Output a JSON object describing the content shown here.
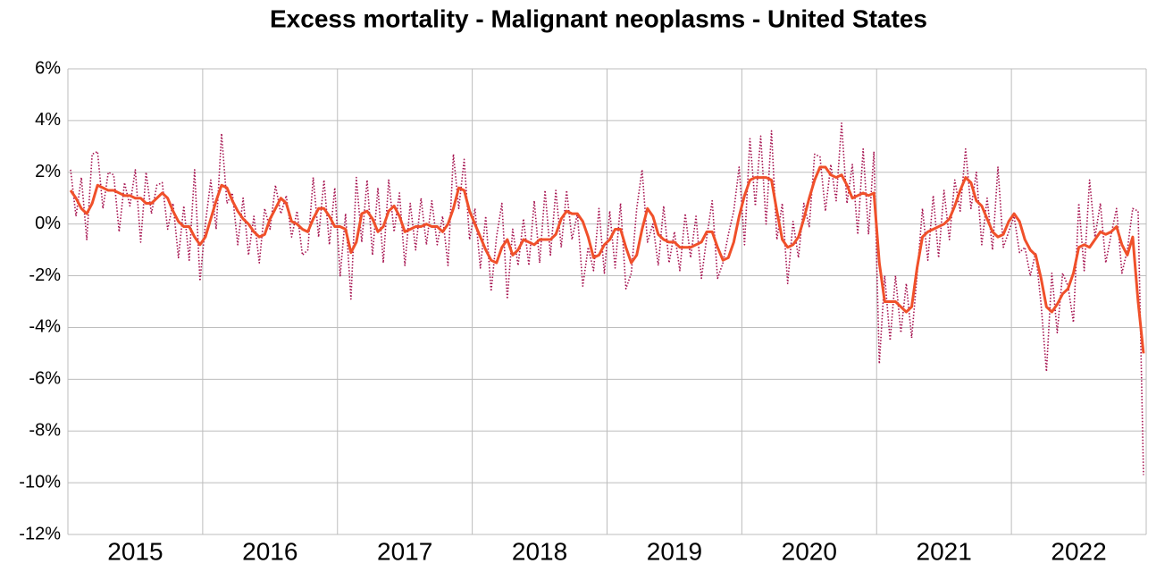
{
  "chart_data": {
    "type": "line",
    "title": "Excess mortality - Malignant neoplasms - United States",
    "xlim": [
      2015,
      2023
    ],
    "xticks": [
      {
        "value": 2015.5,
        "label": "2015"
      },
      {
        "value": 2016.5,
        "label": "2016"
      },
      {
        "value": 2017.5,
        "label": "2017"
      },
      {
        "value": 2018.5,
        "label": "2018"
      },
      {
        "value": 2019.5,
        "label": "2019"
      },
      {
        "value": 2020.5,
        "label": "2020"
      },
      {
        "value": 2021.5,
        "label": "2021"
      },
      {
        "value": 2022.5,
        "label": "2022"
      }
    ],
    "xgrid": [
      2016,
      2017,
      2018,
      2019,
      2020,
      2021,
      2022
    ],
    "ylim": [
      -12,
      6
    ],
    "yticks": [
      {
        "value": -12,
        "label": "-12%"
      },
      {
        "value": -10,
        "label": "-10%"
      },
      {
        "value": -8,
        "label": "-8%"
      },
      {
        "value": -6,
        "label": "-6%"
      },
      {
        "value": -4,
        "label": "-4%"
      },
      {
        "value": -2,
        "label": "-2%"
      },
      {
        "value": 0,
        "label": "0%"
      },
      {
        "value": 2,
        "label": "2%"
      },
      {
        "value": 4,
        "label": "4%"
      },
      {
        "value": 6,
        "label": "6%"
      }
    ],
    "grid": true,
    "x": [
      2015.02,
      2015.06,
      2015.1,
      2015.14,
      2015.18,
      2015.22,
      2015.26,
      2015.3,
      2015.34,
      2015.38,
      2015.42,
      2015.46,
      2015.5,
      2015.54,
      2015.58,
      2015.62,
      2015.66,
      2015.7,
      2015.74,
      2015.78,
      2015.82,
      2015.86,
      2015.9,
      2015.94,
      2015.98,
      2016.02,
      2016.06,
      2016.1,
      2016.14,
      2016.18,
      2016.22,
      2016.26,
      2016.3,
      2016.34,
      2016.38,
      2016.42,
      2016.46,
      2016.5,
      2016.54,
      2016.58,
      2016.62,
      2016.66,
      2016.7,
      2016.74,
      2016.78,
      2016.82,
      2016.86,
      2016.9,
      2016.94,
      2016.98,
      2017.02,
      2017.06,
      2017.1,
      2017.14,
      2017.18,
      2017.22,
      2017.26,
      2017.3,
      2017.34,
      2017.38,
      2017.42,
      2017.46,
      2017.5,
      2017.54,
      2017.58,
      2017.62,
      2017.66,
      2017.7,
      2017.74,
      2017.78,
      2017.82,
      2017.86,
      2017.9,
      2017.94,
      2017.98,
      2018.02,
      2018.06,
      2018.1,
      2018.14,
      2018.18,
      2018.22,
      2018.26,
      2018.3,
      2018.34,
      2018.38,
      2018.42,
      2018.46,
      2018.5,
      2018.54,
      2018.58,
      2018.62,
      2018.66,
      2018.7,
      2018.74,
      2018.78,
      2018.82,
      2018.86,
      2018.9,
      2018.94,
      2018.98,
      2019.02,
      2019.06,
      2019.1,
      2019.14,
      2019.18,
      2019.22,
      2019.26,
      2019.3,
      2019.34,
      2019.38,
      2019.42,
      2019.46,
      2019.5,
      2019.54,
      2019.58,
      2019.62,
      2019.66,
      2019.7,
      2019.74,
      2019.78,
      2019.82,
      2019.86,
      2019.9,
      2019.94,
      2019.98,
      2020.02,
      2020.06,
      2020.1,
      2020.14,
      2020.18,
      2020.22,
      2020.26,
      2020.3,
      2020.34,
      2020.38,
      2020.42,
      2020.46,
      2020.5,
      2020.54,
      2020.58,
      2020.62,
      2020.66,
      2020.7,
      2020.74,
      2020.78,
      2020.82,
      2020.86,
      2020.9,
      2020.94,
      2020.98,
      2021.02,
      2021.06,
      2021.1,
      2021.14,
      2021.18,
      2021.22,
      2021.26,
      2021.3,
      2021.34,
      2021.38,
      2021.42,
      2021.46,
      2021.5,
      2021.54,
      2021.58,
      2021.62,
      2021.66,
      2021.7,
      2021.74,
      2021.78,
      2021.82,
      2021.86,
      2021.9,
      2021.94,
      2021.98,
      2022.02,
      2022.06,
      2022.1,
      2022.14,
      2022.18,
      2022.22,
      2022.26,
      2022.3,
      2022.34,
      2022.38,
      2022.42,
      2022.46,
      2022.5,
      2022.54,
      2022.58,
      2022.62,
      2022.66,
      2022.7,
      2022.74,
      2022.78,
      2022.82,
      2022.86,
      2022.9,
      2022.94,
      2022.98
    ],
    "series": [
      {
        "color": "#a5124f",
        "style": "dotted",
        "values": [
          2.1,
          0.3,
          1.8,
          -0.6,
          2.7,
          2.8,
          0.6,
          2.0,
          1.9,
          -0.3,
          1.6,
          0.7,
          2.1,
          -0.7,
          2.0,
          0.4,
          1.5,
          1.6,
          -0.2,
          0.8,
          -1.3,
          0.7,
          -1.4,
          2.1,
          -2.2,
          0.0,
          1.7,
          -0.2,
          3.5,
          0.8,
          1.2,
          -0.8,
          1.0,
          -1.2,
          0.3,
          -1.5,
          0.6,
          -0.2,
          1.5,
          0.4,
          1.1,
          -0.5,
          0.5,
          -1.2,
          -1.0,
          1.8,
          -0.5,
          1.7,
          -0.8,
          1.4,
          -2.0,
          0.4,
          -2.9,
          1.8,
          -0.7,
          1.7,
          -1.2,
          1.4,
          -1.5,
          1.7,
          -0.3,
          1.2,
          -1.6,
          0.8,
          -1.0,
          1.0,
          -0.8,
          0.9,
          -0.8,
          0.3,
          -1.6,
          2.7,
          0.6,
          2.5,
          -0.6,
          0.6,
          -1.7,
          0.3,
          -2.6,
          -0.5,
          0.8,
          -2.9,
          -0.2,
          -1.6,
          0.2,
          -1.6,
          0.9,
          -1.5,
          1.3,
          -1.2,
          1.3,
          -0.9,
          1.3,
          -0.6,
          0.4,
          -2.4,
          -0.9,
          -1.8,
          0.6,
          -1.9,
          0.5,
          -1.7,
          0.8,
          -2.5,
          -1.9,
          0.6,
          2.1,
          -0.7,
          0.0,
          -1.6,
          0.7,
          -1.5,
          -0.3,
          -1.8,
          0.4,
          -1.3,
          0.3,
          -2.1,
          -0.5,
          0.9,
          -2.1,
          -1.5,
          -0.4,
          0.5,
          2.2,
          -0.8,
          3.3,
          0.7,
          3.4,
          0.0,
          3.6,
          -0.6,
          0.8,
          -2.3,
          0.1,
          -1.3,
          0.8,
          -0.1,
          2.7,
          2.6,
          0.5,
          2.3,
          0.9,
          3.9,
          0.8,
          2.3,
          -0.4,
          2.9,
          -0.4,
          2.8,
          -5.4,
          -2.0,
          -4.5,
          -2.0,
          -4.2,
          -2.3,
          -4.4,
          -2.0,
          0.6,
          -1.4,
          1.1,
          -1.3,
          1.3,
          -0.6,
          1.7,
          0.5,
          2.9,
          0.6,
          2.0,
          -0.8,
          1.0,
          -1.0,
          2.2,
          -0.9,
          -0.3,
          0.3,
          -1.1,
          -0.9,
          -2.0,
          -1.1,
          -3.1,
          -5.7,
          -1.9,
          -4.2,
          -1.9,
          -2.4,
          -3.8,
          0.8,
          -1.8,
          1.7,
          -0.5,
          0.8,
          -1.5,
          -0.4,
          0.6,
          -1.9,
          -1.0,
          0.6,
          0.5,
          -9.7
        ]
      },
      {
        "color": "#f0502a",
        "style": "solid",
        "values": [
          1.3,
          1.0,
          0.6,
          0.4,
          0.8,
          1.5,
          1.4,
          1.3,
          1.3,
          1.2,
          1.1,
          1.1,
          1.0,
          1.0,
          0.8,
          0.8,
          1.0,
          1.2,
          1.0,
          0.5,
          0.1,
          -0.1,
          -0.1,
          -0.5,
          -0.8,
          -0.5,
          0.2,
          0.9,
          1.5,
          1.4,
          0.9,
          0.5,
          0.2,
          0.0,
          -0.3,
          -0.5,
          -0.4,
          0.2,
          0.6,
          1.0,
          0.8,
          0.1,
          0.0,
          -0.2,
          -0.3,
          0.2,
          0.6,
          0.6,
          0.3,
          -0.1,
          -0.1,
          -0.2,
          -1.1,
          -0.7,
          0.4,
          0.5,
          0.2,
          -0.3,
          -0.1,
          0.5,
          0.7,
          0.3,
          -0.3,
          -0.2,
          -0.1,
          -0.1,
          0.0,
          -0.1,
          -0.1,
          -0.3,
          0.0,
          0.6,
          1.4,
          1.3,
          0.5,
          0.0,
          -0.5,
          -1.0,
          -1.4,
          -1.5,
          -0.9,
          -0.6,
          -1.2,
          -1.0,
          -0.6,
          -0.7,
          -0.8,
          -0.6,
          -0.6,
          -0.6,
          -0.4,
          0.2,
          0.5,
          0.4,
          0.4,
          0.1,
          -0.5,
          -1.3,
          -1.2,
          -0.8,
          -0.6,
          -0.2,
          -0.2,
          -0.9,
          -1.5,
          -1.2,
          -0.2,
          0.6,
          0.3,
          -0.4,
          -0.6,
          -0.7,
          -0.7,
          -0.9,
          -0.9,
          -0.9,
          -0.8,
          -0.7,
          -0.3,
          -0.3,
          -0.9,
          -1.4,
          -1.3,
          -0.7,
          0.3,
          1.1,
          1.7,
          1.8,
          1.8,
          1.8,
          1.7,
          0.5,
          -0.6,
          -0.9,
          -0.8,
          -0.5,
          0.2,
          1.0,
          1.7,
          2.2,
          2.2,
          1.9,
          1.8,
          1.9,
          1.5,
          1.0,
          1.1,
          1.2,
          1.1,
          1.2,
          -1.5,
          -3.0,
          -3.0,
          -3.0,
          -3.2,
          -3.4,
          -3.2,
          -1.7,
          -0.5,
          -0.3,
          -0.2,
          -0.1,
          0.0,
          0.2,
          0.7,
          1.3,
          1.8,
          1.6,
          0.9,
          0.7,
          0.2,
          -0.3,
          -0.5,
          -0.4,
          0.1,
          0.4,
          0.1,
          -0.6,
          -1.0,
          -1.2,
          -2.1,
          -3.2,
          -3.4,
          -3.1,
          -2.7,
          -2.5,
          -1.9,
          -0.9,
          -0.8,
          -0.9,
          -0.6,
          -0.3,
          -0.4,
          -0.3,
          -0.1,
          -0.8,
          -1.2,
          -0.5,
          -3.0,
          -5.0
        ]
      }
    ]
  }
}
